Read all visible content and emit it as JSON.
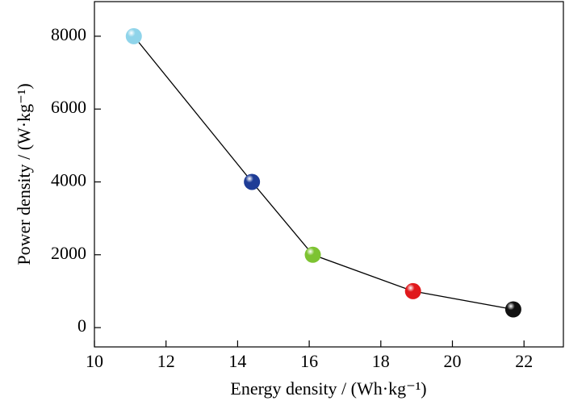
{
  "chart_data": {
    "type": "line",
    "x_label": "Energy density / (Wh·kg⁻¹)",
    "y_label": "Power density / (W·kg⁻¹)",
    "x": [
      11.1,
      14.4,
      16.1,
      18.9,
      21.7
    ],
    "values": [
      8000,
      4000,
      2000,
      1000,
      500
    ],
    "colors": [
      "#8fd4ea",
      "#1e3c96",
      "#7dc331",
      "#e0191c",
      "#111111"
    ],
    "line_color": "#000000",
    "xlim": [
      10,
      23.1
    ],
    "xticks": [
      10,
      12,
      14,
      16,
      18,
      20,
      22
    ],
    "ylim": [
      -530,
      8950
    ],
    "yticks": [
      0,
      2000,
      4000,
      6000,
      8000
    ],
    "grid": false
  }
}
